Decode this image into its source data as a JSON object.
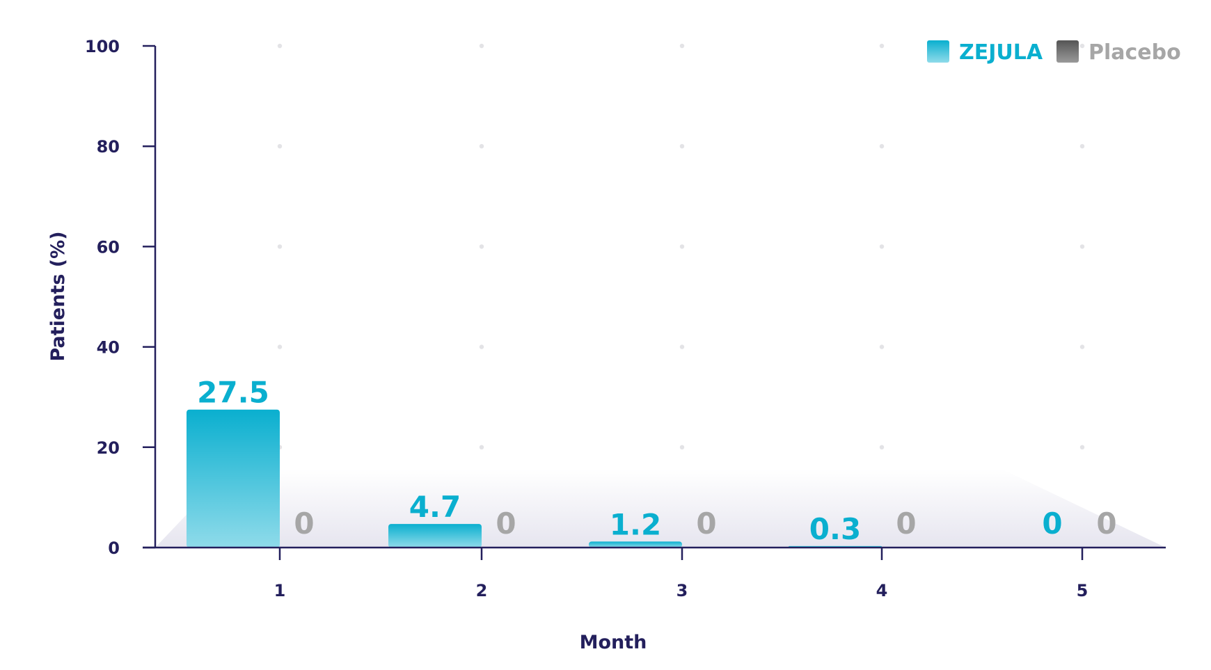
{
  "chart_data": {
    "type": "bar",
    "title": "",
    "xlabel": "Month",
    "ylabel": "Patients (%)",
    "categories": [
      "1",
      "2",
      "3",
      "4",
      "5"
    ],
    "ylim": [
      0,
      100
    ],
    "yticks": [
      "0",
      "20",
      "40",
      "60",
      "80",
      "100"
    ],
    "grid": "dots",
    "legend_position": "top-right",
    "series": [
      {
        "name": "ZEJULA",
        "values": [
          27.5,
          4.7,
          1.2,
          0.3,
          0
        ],
        "labels": [
          "27.5",
          "4.7",
          "1.2",
          "0.3",
          "0"
        ],
        "color": "#0aafcf",
        "color_light": "#8fdbea"
      },
      {
        "name": "Placebo",
        "values": [
          0,
          0,
          0,
          0,
          0
        ],
        "labels": [
          "0",
          "0",
          "0",
          "0",
          "0"
        ],
        "color": "#666666",
        "color_label": "#a6a6a6"
      }
    ],
    "colors": {
      "axis": "#231f5c",
      "grid_dot": "#e3e3e6",
      "floor": "#e6e5ef"
    }
  }
}
